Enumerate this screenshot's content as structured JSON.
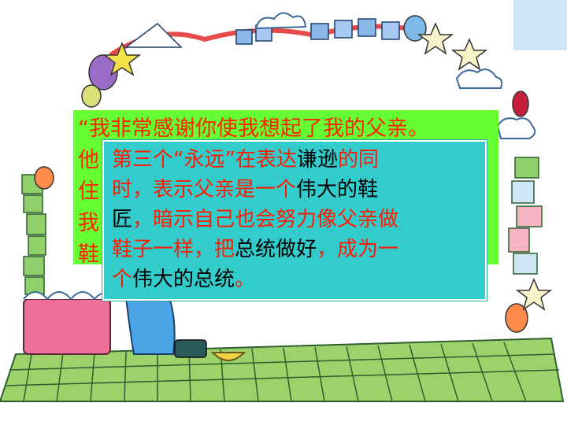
{
  "colors": {
    "green_box": "#66ff33",
    "teal_box": "#33cccc",
    "red_text": "#ff1a00",
    "black_text": "#000000",
    "corner_block": "#cfe6f6"
  },
  "background_quote": {
    "line1": "“我非常感谢你使我想起了我的父亲。",
    "line2": "他",
    "line3": "住",
    "line4": "我",
    "line5": "鞋"
  },
  "explanation": {
    "l1_a": "第三个“永远”在表达",
    "l1_b": "谦逊",
    "l1_c": "的同",
    "l2_a": "时，表示父亲是一个",
    "l2_b": "伟大的鞋",
    "l3_a": "匠",
    "l3_b": "，暗示自己也会努力像父亲做",
    "l4_a": "鞋子一样，把",
    "l4_b": "总统做好",
    "l4_c": "，成为一",
    "l5_a": "个",
    "l5_b": "伟大的总统",
    "l5_c": "。"
  },
  "icons": [
    "balloon-icon",
    "star-icon",
    "cloud-icon",
    "flag-icon",
    "candy-stripe-icon",
    "bowl-icon",
    "cartoon-character-icon"
  ]
}
